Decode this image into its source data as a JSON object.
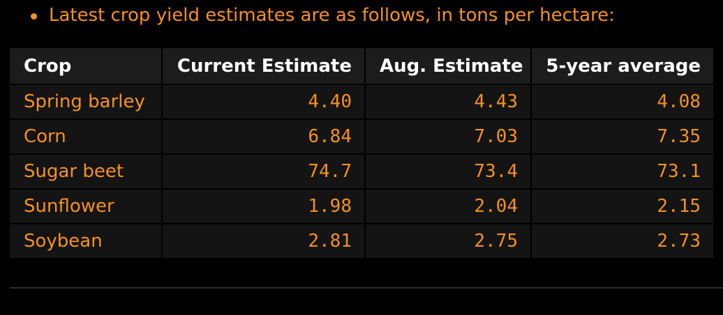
{
  "intro": {
    "text": "Latest crop yield estimates are as follows, in tons per hectare:"
  },
  "table": {
    "headers": [
      "Crop",
      "Current Estimate",
      "Aug. Estimate",
      "5-year average"
    ],
    "rows": [
      [
        "Spring barley",
        "4.40",
        "4.43",
        "4.08"
      ],
      [
        "Corn",
        "6.84",
        "7.03",
        "7.35"
      ],
      [
        "Sugar beet",
        "74.7",
        "73.4",
        "73.1"
      ],
      [
        "Sunflower",
        "1.98",
        "2.04",
        "2.15"
      ],
      [
        "Soybean",
        "2.81",
        "2.75",
        "2.73"
      ]
    ]
  },
  "colors": {
    "accent": "#f5911e",
    "header_text": "#ffffff",
    "background": "#000000",
    "header_bg": "#1c1c1c",
    "row_bg": "#141414"
  }
}
